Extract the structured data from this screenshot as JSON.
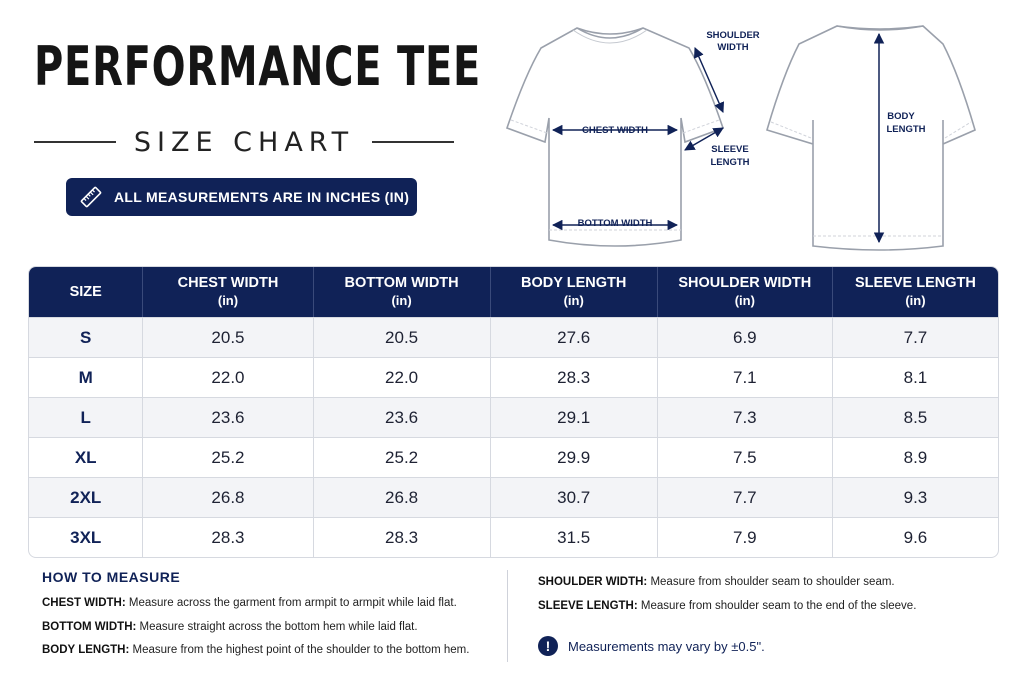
{
  "header": {
    "title": "PERFORMANCE TEE",
    "subtitle": "SIZE CHART",
    "units_note": "ALL MEASUREMENTS ARE IN INCHES (IN)",
    "units_icon": "ruler-icon"
  },
  "diagram": {
    "front": {
      "shoulder_width": [
        "SHOULDER",
        "WIDTH"
      ],
      "chest_width": "CHEST WIDTH",
      "sleeve_length": [
        "SLEEVE",
        "LENGTH"
      ],
      "bottom_width": "BOTTOM WIDTH"
    },
    "back": {
      "body_length": [
        "BODY",
        "LENGTH"
      ]
    }
  },
  "table": {
    "columns": [
      {
        "label": "SIZE",
        "unit": ""
      },
      {
        "label": "CHEST WIDTH",
        "unit": "(in)"
      },
      {
        "label": "BOTTOM WIDTH",
        "unit": "(in)"
      },
      {
        "label": "BODY LENGTH",
        "unit": "(in)"
      },
      {
        "label": "SHOULDER WIDTH",
        "unit": "(in)"
      },
      {
        "label": "SLEEVE LENGTH",
        "unit": "(in)"
      }
    ],
    "rows": [
      [
        "S",
        "20.5",
        "20.5",
        "27.6",
        "6.9",
        "7.7"
      ],
      [
        "M",
        "22.0",
        "22.0",
        "28.3",
        "7.1",
        "8.1"
      ],
      [
        "L",
        "23.6",
        "23.6",
        "29.1",
        "7.3",
        "8.5"
      ],
      [
        "XL",
        "25.2",
        "25.2",
        "29.9",
        "7.5",
        "8.9"
      ],
      [
        "2XL",
        "26.8",
        "26.8",
        "30.7",
        "7.7",
        "9.3"
      ],
      [
        "3XL",
        "28.3",
        "28.3",
        "31.5",
        "7.9",
        "9.6"
      ]
    ]
  },
  "how_to_measure": {
    "title": "HOW TO MEASURE",
    "items": [
      {
        "term": "CHEST WIDTH:",
        "text": "Measure across the garment from armpit to armpit while laid flat."
      },
      {
        "term": "BOTTOM WIDTH:",
        "text": "Measure straight across the bottom hem while laid flat."
      },
      {
        "term": "BODY LENGTH:",
        "text": "Measure from the highest point of the shoulder to the bottom hem."
      },
      {
        "term": "SHOULDER WIDTH:",
        "text": "Measure from shoulder seam to shoulder seam."
      },
      {
        "term": "SLEEVE LENGTH:",
        "text": "Measure from shoulder seam to the end of the sleeve."
      }
    ],
    "variance_note": "Measurements may vary by ±0.5\".",
    "variance_icon": "alert-icon"
  },
  "colors": {
    "navy": "#102257",
    "row_alt": "#f3f4f7",
    "border": "#d6d9e0"
  }
}
